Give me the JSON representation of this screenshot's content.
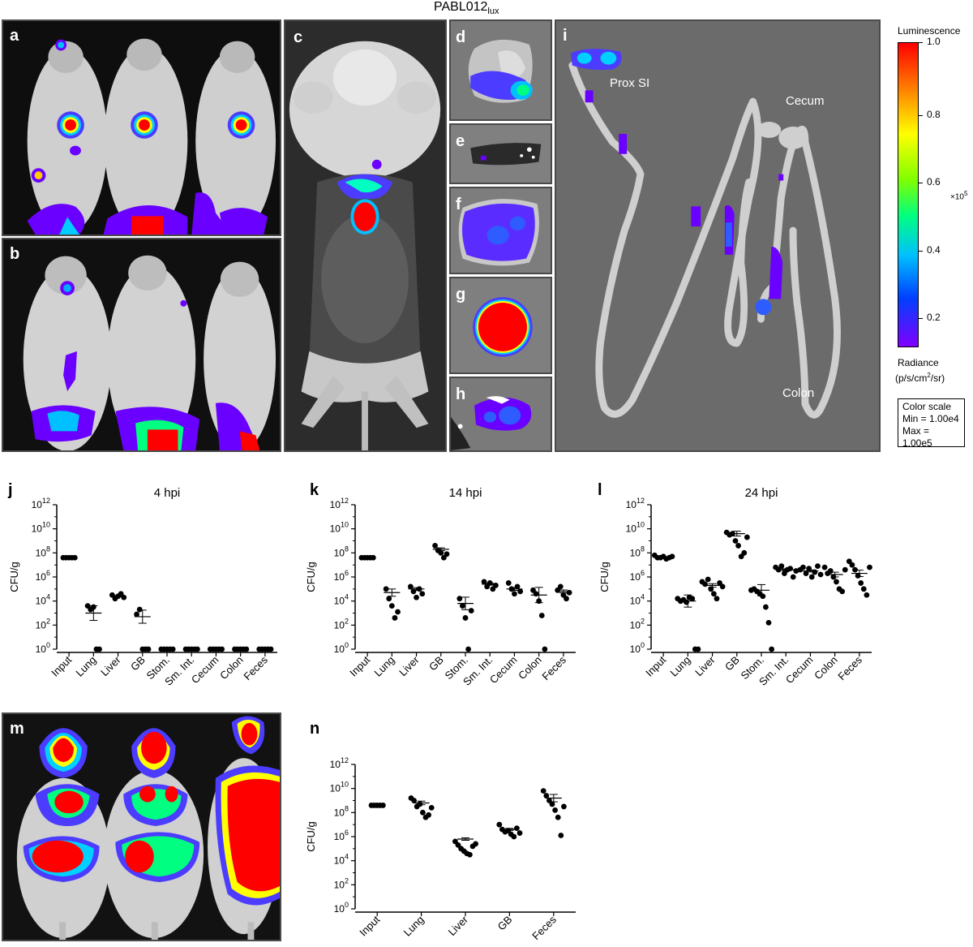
{
  "figure": {
    "strain_title": "PABL012",
    "strain_subscript": "lux",
    "panel_labels": {
      "a": "a",
      "b": "b",
      "c": "c",
      "d": "d",
      "e": "e",
      "f": "f",
      "g": "g",
      "h": "h",
      "i": "i",
      "j": "j",
      "k": "k",
      "l": "l",
      "m": "m",
      "n": "n"
    },
    "organ_annotations": {
      "prox_si": "Prox SI",
      "cecum": "Cecum",
      "colon": "Colon"
    }
  },
  "legend": {
    "title": "Luminescence",
    "ticks": [
      "1.0",
      "0.8",
      "0.6",
      "0.4",
      "0.2"
    ],
    "multiplier": "×10",
    "multiplier_exp": "5",
    "radiance_label": "Radiance",
    "radiance_units_pre": "(p/s/cm",
    "radiance_units_exp": "2",
    "radiance_units_post": "/sr)",
    "color_scale_title": "Color scale",
    "color_scale_min": "Min = 1.00e4",
    "color_scale_max": "Max = 1.00e5",
    "colors": [
      "#ff0000",
      "#ff8000",
      "#ffff00",
      "#80ff00",
      "#00ff80",
      "#00c0ff",
      "#0040ff",
      "#8000ff"
    ]
  },
  "chart_data": [
    {
      "id": "j",
      "type": "scatter",
      "title": "4 hpi",
      "ylabel": "CFU/g",
      "yscale": "log10",
      "ylim_exp": [
        0,
        12
      ],
      "yticks": [
        "10^0",
        "10^2",
        "10^4",
        "10^6",
        "10^8",
        "10^10",
        "10^12"
      ],
      "categories": [
        "Input",
        "Lung",
        "Liver",
        "GB",
        "Stom.",
        "Sm. Int.",
        "Cecum",
        "Colon",
        "Feces"
      ],
      "points_log10": [
        [
          7.6,
          7.6,
          7.6,
          7.6,
          7.6
        ],
        [
          3.6,
          3.3,
          3.5,
          0,
          0
        ],
        [
          4.5,
          4.2,
          4.4,
          4.6,
          4.3
        ],
        [
          2.9,
          3.3,
          0,
          0,
          0
        ],
        [
          0,
          0,
          0,
          0,
          0
        ],
        [
          0,
          0,
          0,
          0,
          0
        ],
        [
          0,
          0,
          0,
          0,
          0
        ],
        [
          0,
          0,
          0,
          0,
          0
        ],
        [
          0,
          0,
          0,
          0,
          0
        ]
      ],
      "means_log10": [
        7.6,
        3.0,
        4.4,
        2.7,
        0,
        0,
        0,
        0,
        0
      ]
    },
    {
      "id": "k",
      "type": "scatter",
      "title": "14 hpi",
      "ylabel": "CFU/g",
      "yscale": "log10",
      "ylim_exp": [
        0,
        12
      ],
      "yticks": [
        "10^0",
        "10^2",
        "10^4",
        "10^6",
        "10^8",
        "10^10",
        "10^12"
      ],
      "categories": [
        "Input",
        "Lung",
        "Liver",
        "GB",
        "Stom.",
        "Sm. Int.",
        "Cecum",
        "Colon",
        "Feces"
      ],
      "points_log10": [
        [
          7.6,
          7.6,
          7.6,
          7.6,
          7.6
        ],
        [
          5.0,
          4.2,
          3.6,
          2.6,
          3.1
        ],
        [
          5.2,
          4.8,
          4.3,
          5.0,
          4.6
        ],
        [
          8.6,
          8.2,
          8.0,
          7.6,
          7.9
        ],
        [
          4.2,
          3.6,
          2.6,
          0,
          3.2
        ],
        [
          5.6,
          5.2,
          5.5,
          5.0,
          5.3
        ],
        [
          5.5,
          5.0,
          4.6,
          5.2,
          4.8
        ],
        [
          4.9,
          4.6,
          4.0,
          2.8,
          0
        ],
        [
          4.9,
          5.2,
          4.5,
          4.2,
          4.7
        ]
      ],
      "means_log10": [
        7.6,
        4.7,
        5.0,
        8.3,
        3.8,
        5.4,
        5.0,
        4.5,
        4.8
      ]
    },
    {
      "id": "l",
      "type": "scatter",
      "title": "24 hpi",
      "ylabel": "CFU/g",
      "yscale": "log10",
      "ylim_exp": [
        0,
        12
      ],
      "yticks": [
        "10^0",
        "10^2",
        "10^4",
        "10^6",
        "10^8",
        "10^10",
        "10^12"
      ],
      "categories": [
        "Input",
        "Lung",
        "Liver",
        "GB",
        "Stom.",
        "Sm. Int.",
        "Cecum",
        "Colon",
        "Feces"
      ],
      "points_log10": [
        [
          7.8,
          7.6,
          7.6,
          7.7,
          7.5,
          7.6,
          7.7
        ],
        [
          4.2,
          4.0,
          4.1,
          3.9,
          4.3,
          4.2,
          0,
          0
        ],
        [
          5.6,
          5.4,
          5.8,
          5.0,
          4.6,
          4.2,
          5.5,
          5.2
        ],
        [
          9.7,
          9.5,
          9.6,
          9.0,
          8.6,
          7.7,
          8.0,
          9.3
        ],
        [
          4.9,
          5.0,
          4.8,
          4.6,
          4.4,
          3.5,
          2.2,
          0
        ],
        [
          6.8,
          6.6,
          6.9,
          6.3,
          6.6,
          6.7,
          6.0,
          6.5
        ],
        [
          6.6,
          6.8,
          6.3,
          6.7,
          6.0,
          6.4,
          6.9,
          6.2
        ],
        [
          6.8,
          6.3,
          6.5,
          6.0,
          5.6,
          5.0,
          4.8,
          6.6
        ],
        [
          7.3,
          7.0,
          6.6,
          6.1,
          5.5,
          5.0,
          4.5,
          6.8
        ]
      ],
      "means_log10": [
        7.6,
        4.0,
        5.3,
        9.6,
        4.9,
        6.6,
        6.5,
        6.2,
        6.3
      ]
    },
    {
      "id": "n",
      "type": "scatter",
      "ylabel": "CFU/g",
      "yscale": "log10",
      "ylim_exp": [
        0,
        12
      ],
      "yticks": [
        "10^0",
        "10^2",
        "10^4",
        "10^6",
        "10^8",
        "10^10",
        "10^12"
      ],
      "categories": [
        "Input",
        "Lung",
        "Liver",
        "GB",
        "Feces"
      ],
      "points_log10": [
        [
          8.6,
          8.6,
          8.6,
          8.6,
          8.6
        ],
        [
          9.2,
          9.0,
          8.5,
          8.7,
          8.0,
          7.6,
          7.8,
          8.4
        ],
        [
          5.6,
          5.3,
          5.0,
          4.8,
          4.6,
          4.5,
          5.2,
          5.4
        ],
        [
          7.0,
          6.6,
          6.4,
          6.5,
          6.2,
          6.0,
          6.7,
          6.3
        ],
        [
          9.8,
          9.4,
          9.0,
          8.7,
          8.2,
          7.6,
          6.1,
          8.5
        ]
      ],
      "means_log10": [
        8.6,
        8.8,
        5.8,
        6.6,
        9.2
      ]
    }
  ]
}
